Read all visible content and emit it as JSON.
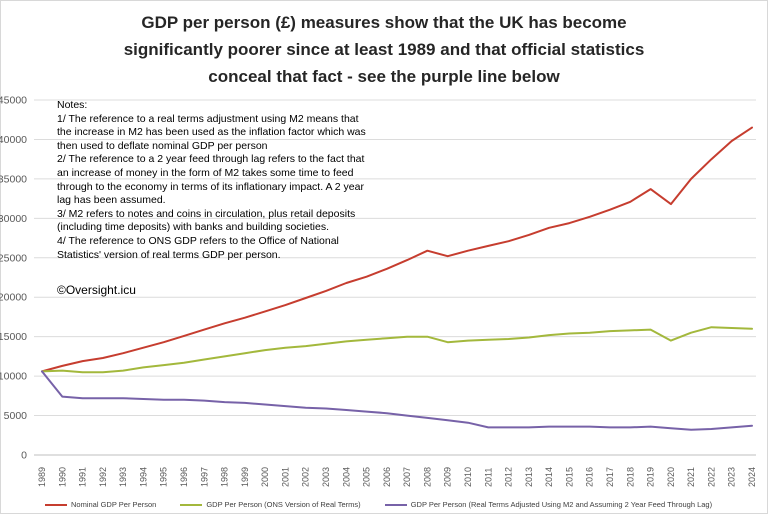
{
  "title": "GDP per person (£) measures show that the UK has become\nsignificantly poorer since at least 1989 and that official statistics\nconceal that fact - see the purple line below",
  "notes": "Notes:\n1/ The reference to a real terms adjustment using M2 means that\nthe increase in M2 has been used as the inflation factor which was\nthen used to deflate nominal GDP per person\n2/ The reference to a 2 year feed through lag refers to the fact that\nan increase of money in the form of M2 takes some time to feed\nthrough to the economy in terms of its inflationary impact. A 2 year\nlag has been assumed.\n3/ M2 refers to notes and coins in circulation, plus retail deposits\n(including time deposits) with banks and building societies.\n4/ The reference to ONS GDP refers to the Office of National\nStatistics' version of real terms GDP per person.",
  "credit": "©Oversight.icu",
  "chart_data": {
    "type": "line",
    "x": [
      1989,
      1990,
      1991,
      1992,
      1993,
      1994,
      1995,
      1996,
      1997,
      1998,
      1999,
      2000,
      2001,
      2002,
      2003,
      2004,
      2005,
      2006,
      2007,
      2008,
      2009,
      2010,
      2011,
      2012,
      2013,
      2014,
      2015,
      2016,
      2017,
      2018,
      2019,
      2020,
      2021,
      2022,
      2023,
      2024
    ],
    "series": [
      {
        "name": "Nominal GDP Per Person",
        "color": "#c63d2f",
        "values": [
          10600,
          11300,
          11900,
          12300,
          12900,
          13600,
          14300,
          15100,
          15900,
          16700,
          17400,
          18200,
          19000,
          19900,
          20800,
          21800,
          22600,
          23600,
          24700,
          25900,
          25200,
          25900,
          26500,
          27100,
          27900,
          28800,
          29400,
          30200,
          31100,
          32100,
          33700,
          31800,
          35000,
          37500,
          39800,
          41500
        ]
      },
      {
        "name": "GDP Per Person (ONS Version of Real Terms)",
        "color": "#a3b83c",
        "values": [
          10600,
          10700,
          10500,
          10500,
          10700,
          11100,
          11400,
          11700,
          12100,
          12500,
          12900,
          13300,
          13600,
          13800,
          14100,
          14400,
          14600,
          14800,
          15000,
          15000,
          14300,
          14500,
          14600,
          14700,
          14900,
          15200,
          15400,
          15500,
          15700,
          15800,
          15900,
          14500,
          15500,
          16200,
          16100,
          16000
        ]
      },
      {
        "name": "GDP Per Person (Real Terms Adjusted Using M2 and Assuming 2 Year Feed Through Lag)",
        "color": "#7762a8",
        "values": [
          10600,
          7400,
          7200,
          7200,
          7200,
          7100,
          7000,
          7000,
          6900,
          6700,
          6600,
          6400,
          6200,
          6000,
          5900,
          5700,
          5500,
          5300,
          5000,
          4700,
          4400,
          4100,
          3500,
          3500,
          3500,
          3600,
          3600,
          3600,
          3500,
          3500,
          3600,
          3400,
          3200,
          3300,
          3500,
          3700
        ]
      }
    ],
    "title": "GDP per person (£)",
    "xlabel": "",
    "ylabel": "",
    "ylim": [
      0,
      45000
    ],
    "ytick_step": 5000,
    "grid": true,
    "legend_position": "bottom"
  }
}
